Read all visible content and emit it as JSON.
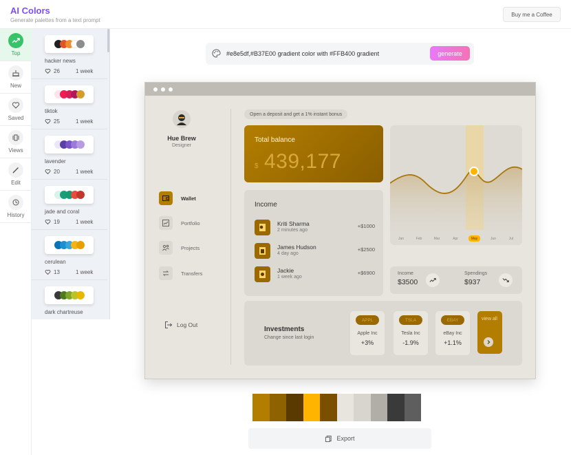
{
  "header": {
    "title": "AI Colors",
    "subtitle": "Generate palettes from a text prompt",
    "coffee_label": "Buy me a Coffee"
  },
  "nav": {
    "items": [
      {
        "label": "Top",
        "icon": "trend-up-icon",
        "active": true
      },
      {
        "label": "New",
        "icon": "cake-icon",
        "active": false
      },
      {
        "label": "Saved",
        "icon": "heart-icon",
        "active": false
      },
      {
        "label": "Views",
        "icon": "views-icon",
        "active": false
      },
      {
        "label": "Edit",
        "icon": "pencil-icon",
        "active": false
      },
      {
        "label": "History",
        "icon": "history-icon",
        "active": false
      }
    ]
  },
  "palettes": [
    {
      "name": "hacker news",
      "likes": "26",
      "time": "1 week",
      "colors": [
        "#1f1f1f",
        "#e0542a",
        "#f08c2c",
        "#ffffff",
        "#8c8c8c"
      ]
    },
    {
      "name": "tiktok",
      "likes": "25",
      "time": "1 week",
      "colors": [
        "#ffe3ea",
        "#ee1d52",
        "#d61f57",
        "#b0185e",
        "#d39d2c"
      ]
    },
    {
      "name": "lavender",
      "likes": "20",
      "time": "1 week",
      "colors": [
        "#ece6fb",
        "#5b3fa8",
        "#7a55c8",
        "#9b7ad9",
        "#b89be3"
      ]
    },
    {
      "name": "jade and coral",
      "likes": "19",
      "time": "1 week",
      "colors": [
        "#d9f3ea",
        "#1a9e78",
        "#139b71",
        "#e74c3c",
        "#c0392b"
      ]
    },
    {
      "name": "cerulean",
      "likes": "13",
      "time": "1 week",
      "colors": [
        "#0a73b8",
        "#1b8fd1",
        "#3aa6d8",
        "#f2b515",
        "#e6a100"
      ]
    },
    {
      "name": "dark chartreuse",
      "likes": "",
      "time": "",
      "colors": [
        "#3a3a3a",
        "#4f7a1e",
        "#7fa52a",
        "#b8c42a",
        "#e6b900"
      ]
    }
  ],
  "prompt": {
    "text": "#e8e5df,#B37E00 gradient color with #FFB400 gradient",
    "generate_label": "generate"
  },
  "preview": {
    "user": {
      "name": "Hue Brew",
      "role": "Designer"
    },
    "menu": [
      {
        "label": "Wallet",
        "icon": "wallet-icon",
        "active": true
      },
      {
        "label": "Portfolio",
        "icon": "portfolio-icon",
        "active": false
      },
      {
        "label": "Projects",
        "icon": "projects-icon",
        "active": false
      },
      {
        "label": "Transfers",
        "icon": "transfers-icon",
        "active": false
      }
    ],
    "logout_label": "Log Out",
    "deposit_text": "Open a deposit and get a 1% instant bonus",
    "balance": {
      "title": "Total balance",
      "currency": "$",
      "value": "439,177"
    },
    "income": {
      "title": "Income",
      "transactions": [
        {
          "name": "Kriti Sharma",
          "time": "2 minutes ago",
          "amount": "+$1000"
        },
        {
          "name": "James Hudson",
          "time": "4 day ago",
          "amount": "+$2500"
        },
        {
          "name": "Jackie",
          "time": "1 week ago",
          "amount": "+$6900"
        }
      ]
    },
    "chart": {
      "months": [
        "Jan",
        "Feb",
        "Mar",
        "Apr",
        "May",
        "Jun",
        "Jul"
      ],
      "highlight": "May"
    },
    "stats": {
      "income_label": "Income",
      "income_value": "$3500",
      "spend_label": "Spendings",
      "spend_value": "$937"
    },
    "investments": {
      "title": "Investments",
      "subtitle": "Change since last login",
      "stocks": [
        {
          "tag": "APPL",
          "name": "Apple Inc",
          "change": "+3%"
        },
        {
          "tag": "TSLA",
          "name": "Tesla Inc",
          "change": "-1.9%"
        },
        {
          "tag": "EBAY",
          "name": "eBay Inc",
          "change": "+1.1%"
        }
      ],
      "view_all": "view all"
    }
  },
  "swatches": [
    "#b37e00",
    "#8f6200",
    "#5a3a00",
    "#ffb400",
    "#7a4f00",
    "#e8e5df",
    "#d8d5cf",
    "#b1aea8",
    "#3a3a3a",
    "#5e5e5e"
  ],
  "export_label": "Export",
  "colors": {
    "brand": "#7c4dff",
    "accent": "#b37e00",
    "active_nav": "#38c26a"
  }
}
